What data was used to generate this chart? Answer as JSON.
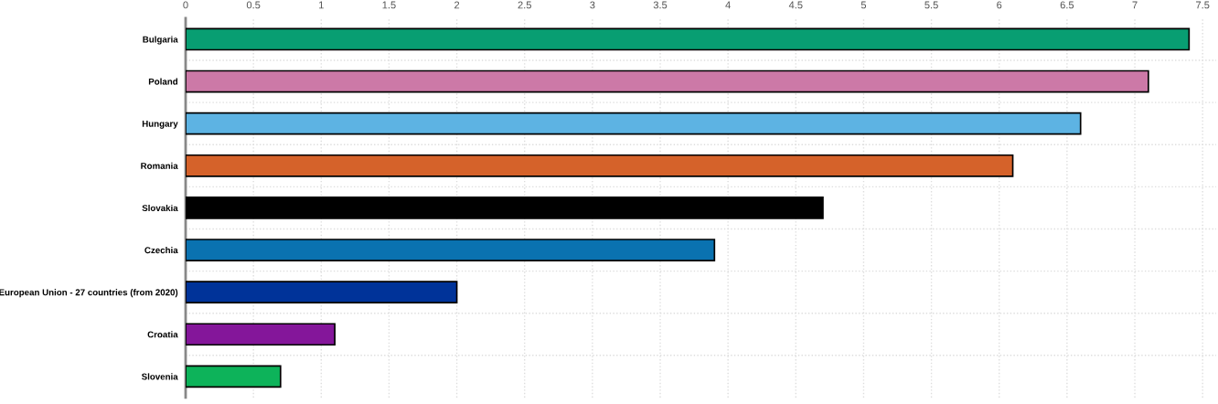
{
  "chart_data": {
    "type": "bar",
    "orientation": "horizontal",
    "categories": [
      "Bulgaria",
      "Poland",
      "Hungary",
      "Romania",
      "Slovakia",
      "Czechia",
      "European Union - 27 countries (from 2020)",
      "Croatia",
      "Slovenia"
    ],
    "values": [
      7.4,
      7.1,
      6.6,
      6.1,
      4.7,
      3.9,
      2.0,
      1.1,
      0.7
    ],
    "colors": [
      "#089e72",
      "#cc79a7",
      "#5db3e3",
      "#d5622a",
      "#000000",
      "#0a72b0",
      "#003399",
      "#84169a",
      "#0db35a"
    ],
    "xlim": [
      0,
      7.6
    ],
    "xticks": [
      0,
      0.5,
      1,
      1.5,
      2,
      2.5,
      3,
      3.5,
      4,
      4.5,
      5,
      5.5,
      6,
      6.5,
      7,
      7.5
    ],
    "grid": true
  }
}
